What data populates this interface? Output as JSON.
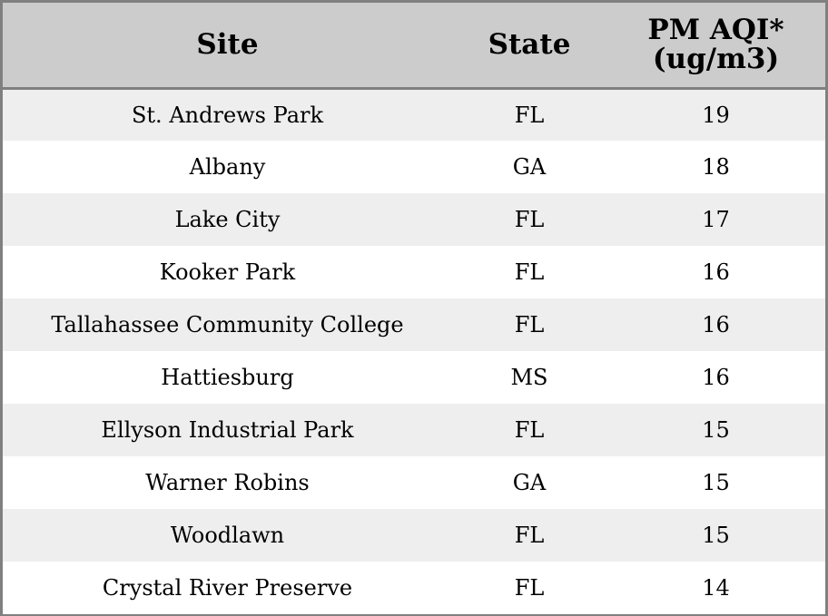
{
  "table": {
    "headers": {
      "site": "Site",
      "state": "State",
      "aqi_line1": "PM AQI*",
      "aqi_line2": "(ug/m3)"
    },
    "rows": [
      {
        "site": "St. Andrews Park",
        "state": "FL",
        "aqi": "19"
      },
      {
        "site": "Albany",
        "state": "GA",
        "aqi": "18"
      },
      {
        "site": "Lake City",
        "state": "FL",
        "aqi": "17"
      },
      {
        "site": "Kooker Park",
        "state": "FL",
        "aqi": "16"
      },
      {
        "site": "Tallahassee Community College",
        "state": "FL",
        "aqi": "16"
      },
      {
        "site": "Hattiesburg",
        "state": "MS",
        "aqi": "16"
      },
      {
        "site": "Ellyson Industrial Park",
        "state": "FL",
        "aqi": "15"
      },
      {
        "site": "Warner Robins",
        "state": "GA",
        "aqi": "15"
      },
      {
        "site": "Woodlawn",
        "state": "FL",
        "aqi": "15"
      },
      {
        "site": "Crystal River Preserve",
        "state": "FL",
        "aqi": "14"
      }
    ]
  },
  "colors": {
    "header_bg": "#cccccc",
    "row_odd_bg": "#eeeeee",
    "row_even_bg": "#ffffff",
    "border": "#808080",
    "text": "#000000"
  }
}
